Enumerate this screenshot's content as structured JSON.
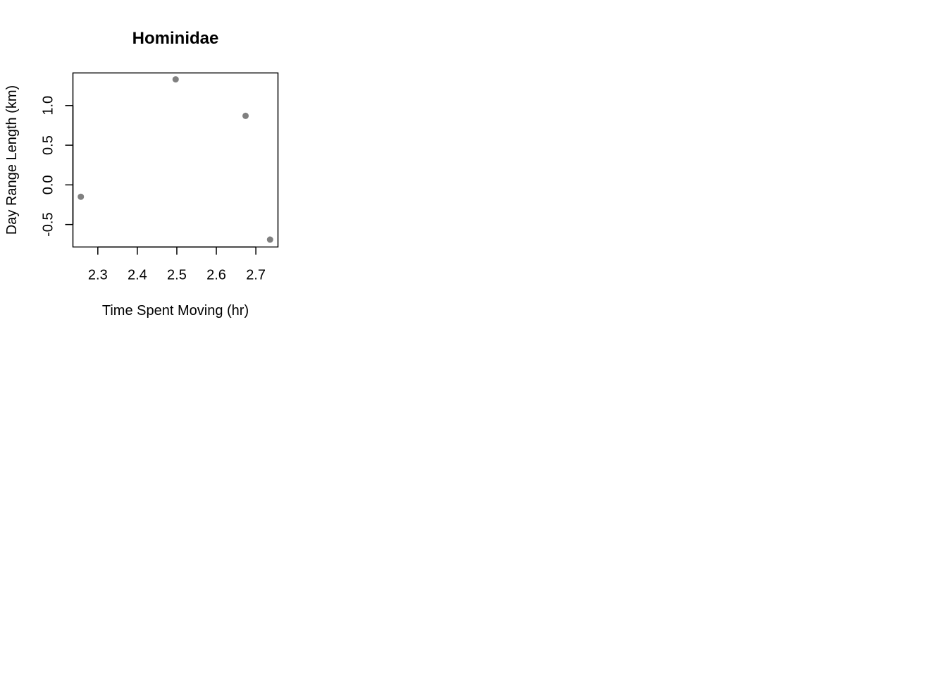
{
  "chart_data": {
    "type": "scatter",
    "title": "Hominidae",
    "xlabel": "Time Spent Moving (hr)",
    "ylabel": "Day Range Length (km)",
    "xlim": [
      2.237,
      2.756
    ],
    "ylim": [
      -0.783,
      1.411
    ],
    "x_ticks": [
      2.3,
      2.4,
      2.5,
      2.6,
      2.7
    ],
    "x_tick_labels": [
      "2.3",
      "2.4",
      "2.5",
      "2.6",
      "2.7"
    ],
    "y_ticks": [
      -0.5,
      0.0,
      0.5,
      1.0
    ],
    "y_tick_labels": [
      "-0.5",
      "0.0",
      "0.5",
      "1.0"
    ],
    "points": [
      {
        "x": 2.257,
        "y": -0.15
      },
      {
        "x": 2.497,
        "y": 1.33
      },
      {
        "x": 2.674,
        "y": 0.87
      },
      {
        "x": 2.736,
        "y": -0.69
      }
    ],
    "grid": false,
    "point_color": "#808080",
    "axis_color": "#000000"
  }
}
